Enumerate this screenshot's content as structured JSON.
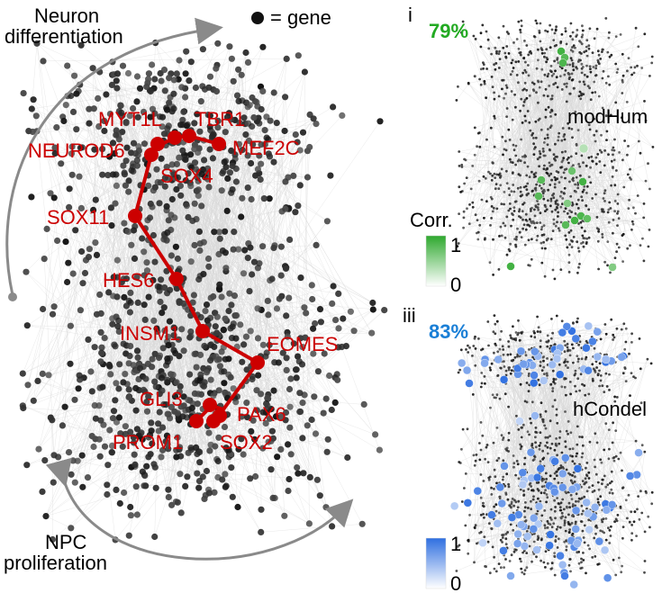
{
  "left_panel": {
    "top_arrow_label": [
      "Neuron",
      "differentiation"
    ],
    "bottom_arrow_label": [
      "NPC",
      "proliferation"
    ],
    "legend_text": "= gene",
    "path_color": "#cc0000",
    "genes": [
      "MYT1L",
      "TBR1",
      "NEUROD6",
      "MEF2C",
      "SOX4",
      "SOX11",
      "HES6",
      "INSM1",
      "EOMES",
      "GLI3",
      "PAX6",
      "PROM1",
      "SOX2"
    ]
  },
  "right_panels": [
    {
      "id": "i",
      "percent": "79%",
      "percent_color": "#22aa22",
      "title": "modHum",
      "colorbar_label": "Corr.",
      "colorbar_max": "1",
      "colorbar_min": "0",
      "color": "#33aa33"
    },
    {
      "id": "iii",
      "percent": "83%",
      "percent_color": "#1a7fd6",
      "title": "hCondel",
      "colorbar_label": "",
      "colorbar_max": "1",
      "colorbar_min": "0",
      "color": "#2f6fe0"
    }
  ]
}
